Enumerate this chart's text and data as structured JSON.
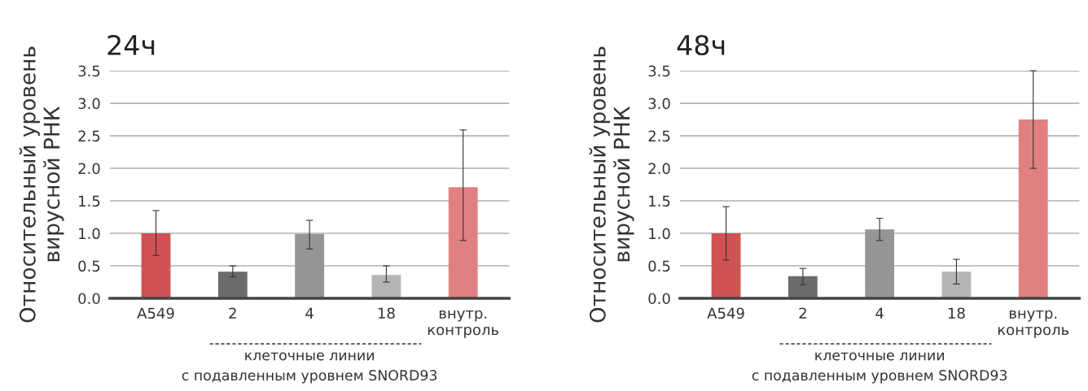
{
  "chart_data": [
    {
      "type": "bar",
      "title": "24ч",
      "ylabel": "Относительный уровень\nвирусной РНК",
      "xlabel": "клеточные линии\nс подавленным уровнем SNORD93",
      "categories": [
        "A549",
        "2",
        "4",
        "18",
        "внутр.\nконтроль"
      ],
      "values": [
        1.0,
        0.41,
        0.99,
        0.36,
        1.71
      ],
      "errors": [
        [
          0.66,
          1.35
        ],
        [
          0.33,
          0.5
        ],
        [
          0.76,
          1.2
        ],
        [
          0.25,
          0.5
        ],
        [
          0.89,
          2.59
        ]
      ],
      "colors": [
        "#d05252",
        "#6b6b6b",
        "#959595",
        "#b5b5b5",
        "#e08080"
      ],
      "ylim": [
        0,
        3.5
      ],
      "yticks": [
        {
          "value": 0,
          "label": "0.0"
        },
        {
          "value": 0.5,
          "label": "0.5"
        },
        {
          "value": 1,
          "label": "1.0"
        },
        {
          "value": 1.5,
          "label": "1.5"
        },
        {
          "value": 2,
          "label": "2.0"
        },
        {
          "value": 2.5,
          "label": "2.5"
        },
        {
          "value": 3,
          "label": "3.0"
        },
        {
          "value": 3.5,
          "label": "3.5"
        }
      ],
      "grid": "y"
    },
    {
      "type": "bar",
      "title": "48ч",
      "ylabel": "Относительный уровень\nвирусной РНК",
      "xlabel": "клеточные линии\nс подавленным уровнем SNORD93",
      "categories": [
        "A549",
        "2",
        "4",
        "18",
        "внутр.\nконтроль"
      ],
      "values": [
        1.0,
        0.34,
        1.06,
        0.41,
        2.75
      ],
      "errors": [
        [
          0.59,
          1.41
        ],
        [
          0.21,
          0.46
        ],
        [
          0.89,
          1.23
        ],
        [
          0.22,
          0.6
        ],
        [
          2.0,
          3.5
        ]
      ],
      "colors": [
        "#d05252",
        "#6b6b6b",
        "#959595",
        "#b5b5b5",
        "#e08080"
      ],
      "ylim": [
        0,
        3.5
      ],
      "yticks": [
        {
          "value": 0,
          "label": "0.0"
        },
        {
          "value": 0.5,
          "label": "0.5"
        },
        {
          "value": 1,
          "label": "1.0"
        },
        {
          "value": 1.5,
          "label": "1.5"
        },
        {
          "value": 2,
          "label": "2.0"
        },
        {
          "value": 2.5,
          "label": "2.5"
        },
        {
          "value": 3,
          "label": "3.0"
        },
        {
          "value": 3.5,
          "label": "3.5"
        }
      ],
      "grid": "y"
    }
  ]
}
